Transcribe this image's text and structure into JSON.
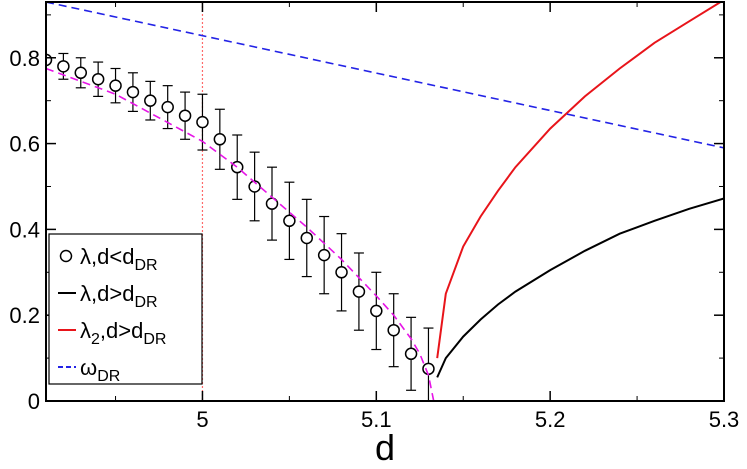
{
  "chart_data": {
    "type": "line",
    "xlabel": "d",
    "ylabel": "",
    "xlim": [
      4.91,
      5.3
    ],
    "ylim": [
      0,
      0.93
    ],
    "x_ticks": [
      "5",
      "5.1",
      "5.2",
      "5.3"
    ],
    "x_tick_values": [
      5.0,
      5.1,
      5.2,
      5.3
    ],
    "y_ticks": [
      "0",
      "0.2",
      "0.4",
      "0.6",
      "0.8"
    ],
    "y_tick_values": [
      0,
      0.2,
      0.4,
      0.6,
      0.8
    ],
    "grid": false,
    "legend_position": "lower-left",
    "vertical_line": {
      "x": 5.0,
      "color": "#ff6a6a"
    },
    "series": [
      {
        "legend_main": "λ,d<d",
        "legend_sub": "DR",
        "legend_marker": "circle",
        "color": "#000000",
        "style": "circles-with-error-bars",
        "x": [
          4.91,
          4.92,
          4.93,
          4.94,
          4.95,
          4.96,
          4.97,
          4.98,
          4.99,
          5.0,
          5.01,
          5.02,
          5.03,
          5.04,
          5.05,
          5.06,
          5.07,
          5.08,
          5.09,
          5.1,
          5.11,
          5.12,
          5.13
        ],
        "y": [
          0.795,
          0.78,
          0.765,
          0.75,
          0.735,
          0.72,
          0.7,
          0.685,
          0.665,
          0.65,
          0.61,
          0.545,
          0.5,
          0.46,
          0.42,
          0.38,
          0.34,
          0.3,
          0.255,
          0.21,
          0.165,
          0.11,
          0.075
        ],
        "err": [
          0.0,
          0.03,
          0.035,
          0.04,
          0.04,
          0.045,
          0.045,
          0.05,
          0.055,
          0.065,
          0.07,
          0.075,
          0.08,
          0.085,
          0.09,
          0.09,
          0.09,
          0.09,
          0.09,
          0.09,
          0.085,
          0.085,
          0.095
        ]
      },
      {
        "legend_main": "λ,d>d",
        "legend_sub": "DR",
        "legend_marker": "line",
        "color": "#000000",
        "style": "solid",
        "x": [
          5.135,
          5.14,
          5.15,
          5.16,
          5.17,
          5.18,
          5.2,
          5.22,
          5.24,
          5.26,
          5.28,
          5.3
        ],
        "y": [
          0.055,
          0.1,
          0.15,
          0.19,
          0.225,
          0.255,
          0.305,
          0.35,
          0.39,
          0.42,
          0.448,
          0.472
        ]
      },
      {
        "legend_main": "λ",
        "legend_main_sub": "2",
        "legend_tail": ",d>d",
        "legend_sub": "DR",
        "legend_marker": "line",
        "color": "#e8141a",
        "style": "solid",
        "x": [
          5.135,
          5.14,
          5.15,
          5.16,
          5.17,
          5.18,
          5.2,
          5.22,
          5.24,
          5.26,
          5.28,
          5.3
        ],
        "y": [
          0.1,
          0.25,
          0.36,
          0.43,
          0.49,
          0.545,
          0.635,
          0.71,
          0.775,
          0.835,
          0.885,
          0.935
        ]
      },
      {
        "legend_main": "ω",
        "legend_sub": "DR",
        "legend_marker": "dashed",
        "color": "#2323e6",
        "style": "dashed",
        "x": [
          4.91,
          5.3
        ],
        "y": [
          0.93,
          0.59
        ]
      },
      {
        "color": "#e614e6",
        "style": "dashed",
        "x": [
          4.91,
          4.95,
          5.0,
          5.02,
          5.04,
          5.06,
          5.08,
          5.1,
          5.11,
          5.12,
          5.125,
          5.13,
          5.133
        ],
        "y": [
          0.775,
          0.715,
          0.605,
          0.545,
          0.475,
          0.405,
          0.33,
          0.245,
          0.2,
          0.145,
          0.11,
          0.06,
          0.0
        ]
      }
    ]
  }
}
